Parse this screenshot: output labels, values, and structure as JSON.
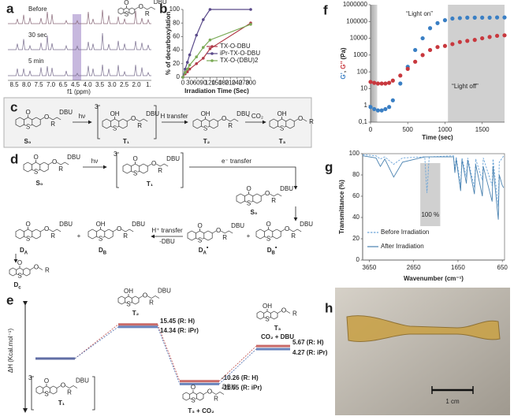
{
  "panels": {
    "a": {
      "letter": "a",
      "labels": [
        "Before",
        "30 sec",
        "5 min"
      ],
      "xtick_labels": [
        "8.5",
        "8.0",
        "7.5",
        "7.0",
        "6.5",
        "4.5",
        "4.0",
        "3.5",
        "3.0",
        "2.5",
        "2.0",
        "1."
      ],
      "xlabel": "f1 (ppm)"
    },
    "c": {
      "letter": "c",
      "states": [
        "S₀",
        "T₁",
        "T₂",
        "T₃"
      ],
      "steps": [
        "hν",
        "H transfer",
        "- CO₂"
      ]
    },
    "d": {
      "letter": "d",
      "states": [
        "S₀",
        "T₁",
        "S₀"
      ],
      "products": [
        {
          "base": "D",
          "sub": "A"
        },
        {
          "base": "D",
          "sub": "B"
        },
        {
          "base": "D",
          "sub": "A",
          "sup": "•"
        },
        {
          "base": "D",
          "sub": "B",
          "sup": "•"
        },
        {
          "base": "D",
          "sub": "c"
        }
      ],
      "steps": [
        "hν",
        "e⁻ transfer",
        "H⁺ transfer",
        "-DBU"
      ],
      "plus": "+"
    },
    "h": {
      "letter": "h",
      "scale": "1 cm"
    },
    "chem": {
      "atoms": {
        "O": "O",
        "OH": "OH",
        "S": "S",
        "R": "R",
        "DBU": "DBU",
        "triplet": "3"
      }
    }
  },
  "chart_data": [
    {
      "label": "b",
      "type": "line",
      "ylabel": "% of decarboxylation",
      "xlabel": "Irradiation Time (Sec)",
      "markers": true,
      "legend": "center-right",
      "x": [
        0,
        10,
        20,
        30,
        60,
        90,
        120,
        300
      ],
      "xlim": [
        0,
        300
      ],
      "xticks": [
        0,
        30,
        60,
        90,
        120,
        150,
        180,
        210,
        240,
        270,
        300
      ],
      "ylim": [
        0,
        100
      ],
      "yticks": [
        0,
        20,
        40,
        60,
        80,
        100
      ],
      "series": [
        {
          "name": "TX-O-DBU",
          "color": "#b03a48",
          "values": [
            0,
            5,
            8,
            12,
            20,
            28,
            42,
            80
          ]
        },
        {
          "name": "iPr-TX-O-DBU",
          "color": "#5a4a8a",
          "values": [
            0,
            12,
            22,
            33,
            62,
            85,
            100,
            100
          ]
        },
        {
          "name": "TX-O-(DBU)2",
          "color": "#7aaa55",
          "values": [
            0,
            7,
            12,
            18,
            30,
            44,
            55,
            78
          ]
        }
      ]
    },
    {
      "label": "f",
      "type": "scatter",
      "ylabel": [
        "G’",
        ", ",
        "G’’",
        " (Pa)"
      ],
      "xlabel": "Time (sec)",
      "log_y": true,
      "x": [
        0,
        50,
        100,
        150,
        200,
        250,
        300,
        400,
        500,
        600,
        700,
        800,
        900,
        1000,
        1100,
        1200,
        1300,
        1400,
        1500,
        1600,
        1700,
        1800
      ],
      "xlim": [
        0,
        1800
      ],
      "xticks": [
        0,
        500,
        1000,
        1500
      ],
      "ylim": [
        0.1,
        1000000
      ],
      "yticks": [
        {
          "value": 0.1,
          "label": "0,1"
        },
        1,
        10,
        100,
        1000,
        10000,
        100000,
        1000000
      ],
      "shading": [
        [
          0,
          90
        ],
        [
          1040,
          1800
        ]
      ],
      "annotations": [
        "“Light on”",
        "“Light off”"
      ],
      "series": [
        {
          "name": "G’",
          "color": "#3a7fc4",
          "values": [
            0.8,
            0.6,
            0.5,
            0.5,
            0.6,
            0.8,
            2,
            20,
            200,
            2000,
            10000,
            40000,
            80000,
            120000,
            150000,
            160000,
            170000,
            170000,
            170000,
            170000,
            175000,
            175000
          ]
        },
        {
          "name": "G’’",
          "color": "#c8383e",
          "values": [
            25,
            22,
            20,
            20,
            20,
            22,
            30,
            60,
            150,
            400,
            1000,
            2000,
            3000,
            3500,
            4500,
            6000,
            7000,
            8000,
            10000,
            12000,
            14000,
            15000
          ]
        }
      ]
    },
    {
      "label": "g",
      "type": "line",
      "ylabel": "Transmittance (%)",
      "xlabel": "Wavenumber (cm⁻¹)",
      "legend": "lower-left",
      "x": [
        3800,
        3500,
        3400,
        3300,
        3100,
        2900,
        2400,
        2350,
        2300,
        1750,
        1720,
        1690,
        1590,
        1560,
        1460,
        1430,
        1280,
        1250,
        1100,
        1080,
        880,
        860,
        740,
        720,
        650,
        620
      ],
      "xlim": [
        3800,
        600
      ],
      "xticks": [
        3650,
        2650,
        1650,
        650
      ],
      "ylim": [
        0,
        100
      ],
      "yticks": [
        0,
        20,
        40,
        60,
        80,
        100
      ],
      "shading": [
        [
          2500,
          2050
        ]
      ],
      "annotation": "100 %",
      "series": [
        {
          "name": "Before Irradiation",
          "style": "dashed",
          "color": "#6aa4d8",
          "values": [
            99,
            98,
            95,
            97,
            90,
            96,
            97,
            63,
            97,
            98,
            85,
            97,
            70,
            96,
            78,
            96,
            68,
            95,
            75,
            96,
            70,
            95,
            50,
            92,
            96,
            98
          ]
        },
        {
          "name": "After Irradiation",
          "style": "solid",
          "color": "#4a82b0",
          "values": [
            98,
            96,
            88,
            95,
            78,
            92,
            97,
            97,
            97,
            97,
            82,
            95,
            65,
            94,
            72,
            94,
            62,
            90,
            60,
            88,
            55,
            88,
            38,
            80,
            70,
            68
          ]
        }
      ]
    },
    {
      "label": "e",
      "type": "level",
      "ylabel": "ΔH (Kcal.mol⁻¹)",
      "ylim": [
        -25,
        25
      ],
      "categories": [
        "T₁",
        "T₂",
        "T₃ + CO₂",
        "CO₂ + DBU"
      ],
      "annotation": "T₃",
      "series": [
        {
          "name": "R: H",
          "color": "#c0504d",
          "values": [
            0,
            15.45,
            -10.26,
            5.67
          ],
          "value_labels": [
            null,
            "15.45 (R: H)",
            "-10.26 (R: H)",
            "5.67 (R: H)"
          ]
        },
        {
          "name": "R: iPr",
          "color": "#4f6fb0",
          "values": [
            0,
            14.34,
            -11.55,
            4.27
          ],
          "value_labels": [
            null,
            "14.34 (R: iPr)",
            "-11.55 (R: iPr)",
            "4.27 (R: iPr)"
          ]
        }
      ]
    }
  ]
}
